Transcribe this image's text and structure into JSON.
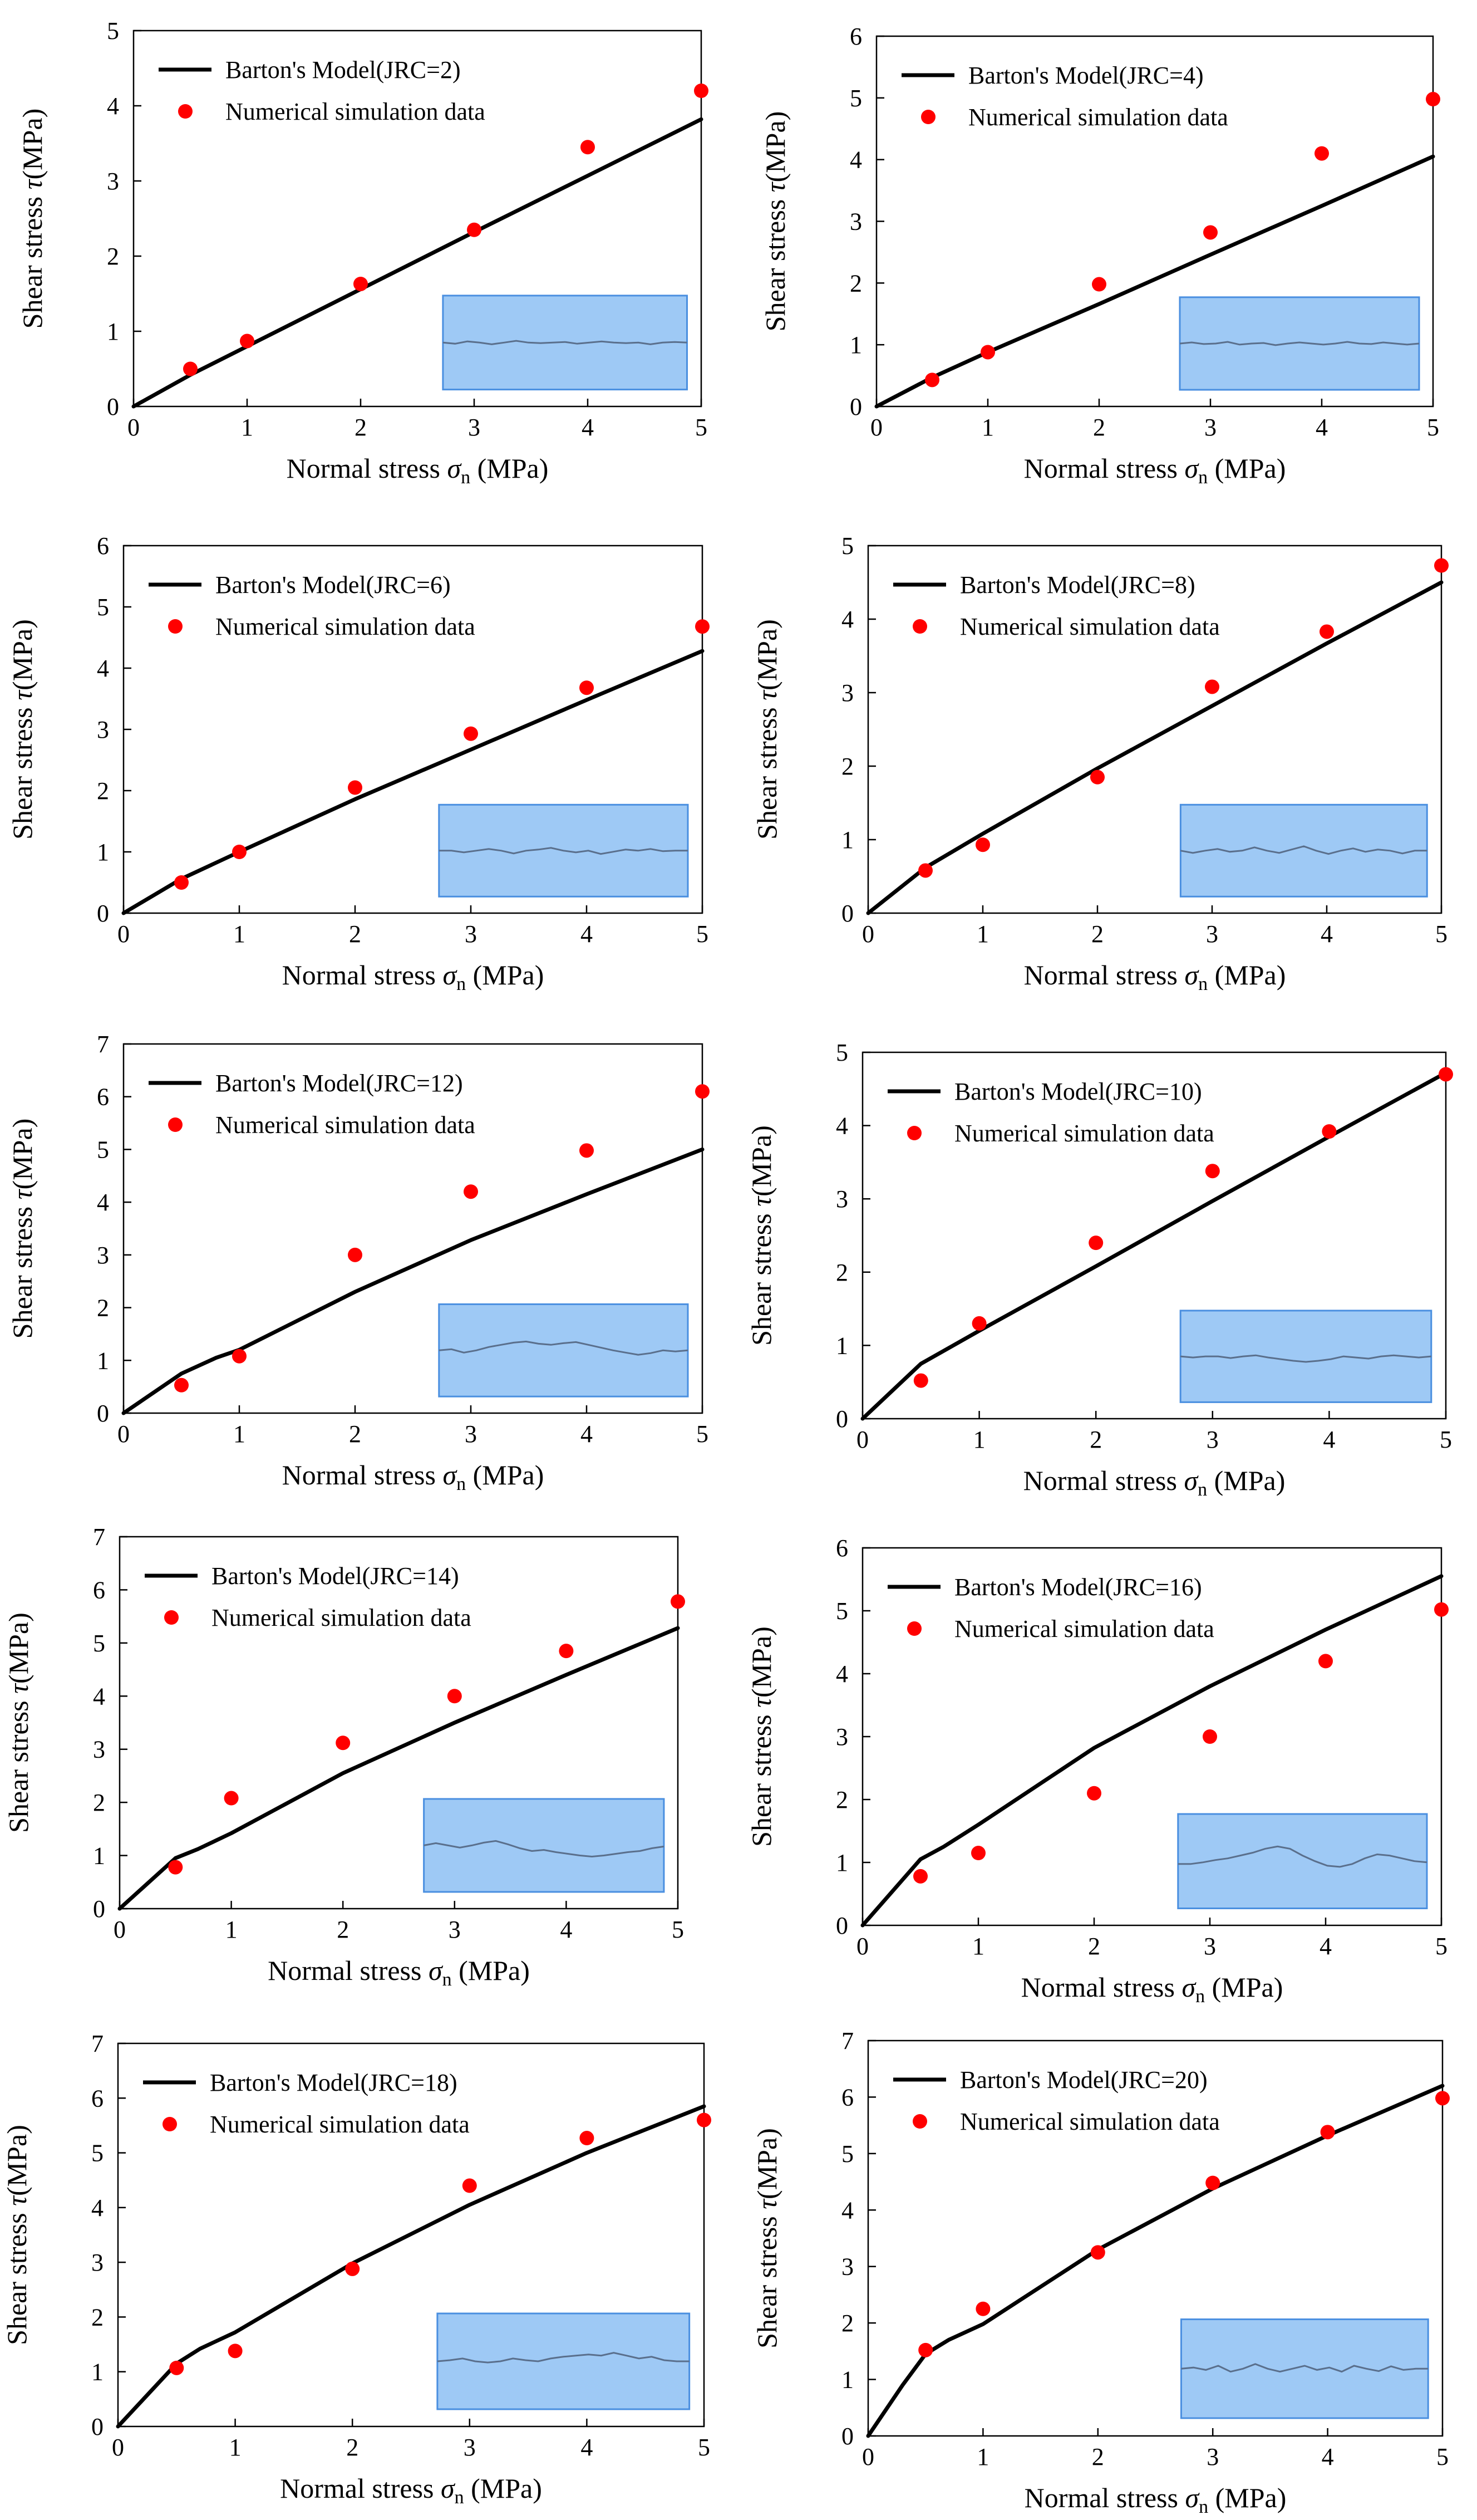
{
  "chart_data": [
    {
      "type": "line+scatter",
      "jrc": 2,
      "title": "",
      "xlabel": "Normal stress σn (MPa)",
      "ylabel": "Shear stress τ(MPa)",
      "xlim": [
        0,
        5
      ],
      "ylim": [
        0,
        5
      ],
      "xticks": [
        "0",
        "1",
        "2",
        "3",
        "4",
        "5"
      ],
      "yticks": [
        "0",
        "1",
        "2",
        "3",
        "4",
        "5"
      ],
      "legend": [
        "Barton's Model(JRC=2)",
        "Numerical simulation data"
      ],
      "model": {
        "name": "Barton's Model(JRC=2)",
        "x": [
          0,
          0.5,
          1,
          2,
          3,
          4,
          5
        ],
        "y": [
          0,
          0.42,
          0.8,
          1.56,
          2.32,
          3.07,
          3.82
        ]
      },
      "sim": {
        "name": "Numerical simulation data",
        "x": [
          0.5,
          1,
          2,
          3,
          4,
          5
        ],
        "y": [
          0.5,
          0.87,
          1.63,
          2.35,
          3.45,
          4.2
        ]
      },
      "inset_profile": [
        0.5,
        0.48,
        0.52,
        0.5,
        0.47,
        0.5,
        0.53,
        0.5,
        0.49,
        0.5,
        0.51,
        0.48,
        0.5,
        0.52,
        0.5,
        0.49,
        0.5,
        0.47,
        0.5,
        0.51,
        0.5
      ]
    },
    {
      "type": "line+scatter",
      "jrc": 4,
      "title": "",
      "xlabel": "Normal stress σn (MPa)",
      "ylabel": "Shear stress τ(MPa)",
      "xlim": [
        0,
        5
      ],
      "ylim": [
        0,
        6
      ],
      "xticks": [
        "0",
        "1",
        "2",
        "3",
        "4",
        "5"
      ],
      "yticks": [
        "0",
        "1",
        "2",
        "3",
        "4",
        "5",
        "6"
      ],
      "legend": [
        "Barton's Model(JRC=4)",
        "Numerical simulation data"
      ],
      "model": {
        "name": "Barton's Model(JRC=4)",
        "x": [
          0,
          0.5,
          1,
          2,
          3,
          4,
          5
        ],
        "y": [
          0,
          0.47,
          0.88,
          1.66,
          2.46,
          3.25,
          4.05
        ]
      },
      "sim": {
        "name": "Numerical simulation data",
        "x": [
          0.5,
          1,
          2,
          3,
          4,
          5
        ],
        "y": [
          0.43,
          0.88,
          1.98,
          2.82,
          4.1,
          4.98
        ]
      },
      "inset_profile": [
        0.5,
        0.52,
        0.49,
        0.5,
        0.53,
        0.48,
        0.5,
        0.51,
        0.47,
        0.5,
        0.52,
        0.5,
        0.48,
        0.5,
        0.53,
        0.5,
        0.49,
        0.52,
        0.5,
        0.48,
        0.5
      ]
    },
    {
      "type": "line+scatter",
      "jrc": 6,
      "title": "",
      "xlabel": "Normal stress σn (MPa)",
      "ylabel": "Shear stress τ(MPa)",
      "xlim": [
        0,
        5
      ],
      "ylim": [
        0,
        6
      ],
      "xticks": [
        "0",
        "1",
        "2",
        "3",
        "4",
        "5"
      ],
      "yticks": [
        "0",
        "1",
        "2",
        "3",
        "4",
        "5",
        "6"
      ],
      "legend": [
        "Barton's Model(JRC=6)",
        "Numerical simulation data"
      ],
      "model": {
        "name": "Barton's Model(JRC=6)",
        "x": [
          0,
          0.5,
          1,
          2,
          3,
          4,
          5
        ],
        "y": [
          0,
          0.56,
          1.0,
          1.86,
          2.67,
          3.48,
          4.28
        ]
      },
      "sim": {
        "name": "Numerical simulation data",
        "x": [
          0.5,
          1,
          2,
          3,
          4,
          5
        ],
        "y": [
          0.5,
          1.0,
          2.05,
          2.93,
          3.68,
          4.68
        ]
      },
      "inset_profile": [
        0.5,
        0.5,
        0.47,
        0.5,
        0.53,
        0.5,
        0.45,
        0.5,
        0.52,
        0.55,
        0.5,
        0.47,
        0.5,
        0.44,
        0.48,
        0.52,
        0.5,
        0.53,
        0.49,
        0.5,
        0.5
      ]
    },
    {
      "type": "line+scatter",
      "jrc": 8,
      "title": "",
      "xlabel": "Normal stress σn (MPa)",
      "ylabel": "Shear stress τ(MPa)",
      "xlim": [
        0,
        5
      ],
      "ylim": [
        0,
        5
      ],
      "xticks": [
        "0",
        "1",
        "2",
        "3",
        "4",
        "5"
      ],
      "yticks": [
        "0",
        "1",
        "2",
        "3",
        "4",
        "5"
      ],
      "legend": [
        "Barton's Model(JRC=8)",
        "Numerical simulation data"
      ],
      "model": {
        "name": "Barton's Model(JRC=8)",
        "x": [
          0,
          0.5,
          1,
          2,
          3,
          4,
          5
        ],
        "y": [
          0,
          0.62,
          1.08,
          1.97,
          2.82,
          3.67,
          4.5
        ]
      },
      "sim": {
        "name": "Numerical simulation data",
        "x": [
          0.5,
          1,
          2,
          3,
          4,
          5
        ],
        "y": [
          0.58,
          0.93,
          1.85,
          3.08,
          3.83,
          4.73
        ]
      },
      "inset_profile": [
        0.5,
        0.46,
        0.5,
        0.53,
        0.48,
        0.5,
        0.56,
        0.5,
        0.46,
        0.52,
        0.58,
        0.5,
        0.44,
        0.5,
        0.54,
        0.48,
        0.52,
        0.5,
        0.45,
        0.5,
        0.5
      ]
    },
    {
      "type": "line+scatter",
      "jrc": 12,
      "title": "",
      "xlabel": "Normal stress σn (MPa)",
      "ylabel": "Shear stress τ(MPa)",
      "xlim": [
        0,
        5
      ],
      "ylim": [
        0,
        7
      ],
      "xticks": [
        "0",
        "1",
        "2",
        "3",
        "4",
        "5"
      ],
      "yticks": [
        "0",
        "1",
        "2",
        "3",
        "4",
        "5",
        "6",
        "7"
      ],
      "legend": [
        "Barton's Model(JRC=12)",
        "Numerical simulation data"
      ],
      "model": {
        "name": "Barton's Model(JRC=12)",
        "x": [
          0,
          0.5,
          0.8,
          1,
          2,
          3,
          4,
          5
        ],
        "y": [
          0,
          0.75,
          1.05,
          1.2,
          2.3,
          3.28,
          4.15,
          5.0
        ]
      },
      "sim": {
        "name": "Numerical simulation data",
        "x": [
          0.5,
          1,
          2,
          3,
          4,
          5
        ],
        "y": [
          0.53,
          1.08,
          3.0,
          4.2,
          4.98,
          6.1
        ]
      },
      "inset_profile": [
        0.5,
        0.52,
        0.46,
        0.5,
        0.56,
        0.6,
        0.64,
        0.66,
        0.62,
        0.6,
        0.63,
        0.65,
        0.6,
        0.55,
        0.5,
        0.46,
        0.42,
        0.45,
        0.5,
        0.48,
        0.5
      ]
    },
    {
      "type": "line+scatter",
      "jrc": 10,
      "title": "",
      "xlabel": "Normal stress σn (MPa)",
      "ylabel": "Shear stress τ(MPa)",
      "xlim": [
        0,
        5
      ],
      "ylim": [
        0,
        5
      ],
      "xticks": [
        "0",
        "1",
        "2",
        "3",
        "4",
        "5"
      ],
      "yticks": [
        "0",
        "1",
        "2",
        "3",
        "4",
        "5"
      ],
      "legend": [
        "Barton's Model(JRC=10)",
        "Numerical simulation data"
      ],
      "model": {
        "name": "Barton's Model(JRC=10)",
        "x": [
          0,
          0.5,
          1,
          2,
          3,
          4,
          5
        ],
        "y": [
          0,
          0.75,
          1.2,
          2.08,
          2.97,
          3.85,
          4.72
        ]
      },
      "sim": {
        "name": "Numerical simulation data",
        "x": [
          0.5,
          1,
          2,
          3,
          4,
          5
        ],
        "y": [
          0.52,
          1.3,
          2.4,
          3.38,
          3.92,
          4.7
        ]
      },
      "inset_profile": [
        0.5,
        0.48,
        0.5,
        0.5,
        0.47,
        0.5,
        0.52,
        0.48,
        0.45,
        0.42,
        0.4,
        0.42,
        0.45,
        0.5,
        0.48,
        0.46,
        0.5,
        0.52,
        0.5,
        0.48,
        0.5
      ]
    },
    {
      "type": "line+scatter",
      "jrc": 14,
      "title": "",
      "xlabel": "Normal stress σn (MPa)",
      "ylabel": "Shear stress τ(MPa)",
      "xlim": [
        0,
        5
      ],
      "ylim": [
        0,
        7
      ],
      "xticks": [
        "0",
        "1",
        "2",
        "3",
        "4",
        "5"
      ],
      "yticks": [
        "0",
        "1",
        "2",
        "3",
        "4",
        "5",
        "6",
        "7"
      ],
      "legend": [
        "Barton's Model(JRC=14)",
        "Numerical simulation data"
      ],
      "model": {
        "name": "Barton's Model(JRC=14)",
        "x": [
          0,
          0.5,
          0.7,
          1,
          2,
          3,
          4,
          5
        ],
        "y": [
          0,
          0.95,
          1.12,
          1.42,
          2.55,
          3.5,
          4.4,
          5.28
        ]
      },
      "sim": {
        "name": "Numerical simulation data",
        "x": [
          0.5,
          1,
          2,
          3,
          4,
          5
        ],
        "y": [
          0.78,
          2.08,
          3.12,
          4.0,
          4.85,
          5.78
        ]
      },
      "inset_profile": [
        0.5,
        0.54,
        0.5,
        0.46,
        0.5,
        0.55,
        0.58,
        0.52,
        0.45,
        0.4,
        0.42,
        0.38,
        0.35,
        0.32,
        0.3,
        0.32,
        0.35,
        0.38,
        0.4,
        0.45,
        0.48
      ]
    },
    {
      "type": "line+scatter",
      "jrc": 16,
      "title": "",
      "xlabel": "Normal stress σn (MPa)",
      "ylabel": "Shear stress τ(MPa)",
      "xlim": [
        0,
        5
      ],
      "ylim": [
        0,
        6
      ],
      "xticks": [
        "0",
        "1",
        "2",
        "3",
        "4",
        "5"
      ],
      "yticks": [
        "0",
        "1",
        "2",
        "3",
        "4",
        "5",
        "6"
      ],
      "legend": [
        "Barton's Model(JRC=16)",
        "Numerical simulation data"
      ],
      "model": {
        "name": "Barton's Model(JRC=16)",
        "x": [
          0,
          0.5,
          0.7,
          1,
          2,
          3,
          4,
          5
        ],
        "y": [
          0,
          1.05,
          1.25,
          1.6,
          2.82,
          3.8,
          4.7,
          5.55
        ]
      },
      "sim": {
        "name": "Numerical simulation data",
        "x": [
          0.5,
          1,
          2,
          3,
          4,
          5
        ],
        "y": [
          0.78,
          1.15,
          2.1,
          3.0,
          4.2,
          5.02
        ]
      },
      "inset_profile": [
        0.45,
        0.45,
        0.48,
        0.52,
        0.55,
        0.6,
        0.65,
        0.72,
        0.76,
        0.72,
        0.6,
        0.5,
        0.42,
        0.4,
        0.45,
        0.55,
        0.62,
        0.6,
        0.55,
        0.5,
        0.48
      ]
    },
    {
      "type": "line+scatter",
      "jrc": 18,
      "title": "",
      "xlabel": "Normal stress σn (MPa)",
      "ylabel": "Shear stress τ(MPa)",
      "xlim": [
        0,
        5
      ],
      "ylim": [
        0,
        7
      ],
      "xticks": [
        "0",
        "1",
        "2",
        "3",
        "4",
        "5"
      ],
      "yticks": [
        "0",
        "1",
        "2",
        "3",
        "4",
        "5",
        "6",
        "7"
      ],
      "legend": [
        "Barton's Model(JRC=18)",
        "Numerical simulation data"
      ],
      "model": {
        "name": "Barton's Model(JRC=18)",
        "x": [
          0,
          0.5,
          0.7,
          1,
          2,
          3,
          4,
          5
        ],
        "y": [
          0,
          1.15,
          1.42,
          1.72,
          2.98,
          4.05,
          5.0,
          5.85
        ]
      },
      "sim": {
        "name": "Numerical simulation data",
        "x": [
          0.5,
          1,
          2,
          3,
          4,
          5
        ],
        "y": [
          1.07,
          1.38,
          2.88,
          4.4,
          5.27,
          5.6
        ]
      },
      "inset_profile": [
        0.5,
        0.52,
        0.55,
        0.5,
        0.48,
        0.5,
        0.55,
        0.52,
        0.5,
        0.55,
        0.58,
        0.6,
        0.62,
        0.6,
        0.65,
        0.6,
        0.55,
        0.58,
        0.52,
        0.5,
        0.5
      ]
    },
    {
      "type": "line+scatter",
      "jrc": 20,
      "title": "",
      "xlabel": "Normal stress σn (MPa)",
      "ylabel": "Shear stress τ(MPa)",
      "xlim": [
        0,
        5
      ],
      "ylim": [
        0,
        7
      ],
      "xticks": [
        "0",
        "1",
        "2",
        "3",
        "4",
        "5"
      ],
      "yticks": [
        "0",
        "1",
        "2",
        "3",
        "4",
        "5",
        "6",
        "7"
      ],
      "legend": [
        "Barton's Model(JRC=20)",
        "Numerical simulation data"
      ],
      "model": {
        "name": "Barton's Model(JRC=20)",
        "x": [
          0,
          0.3,
          0.5,
          0.7,
          1,
          2,
          3,
          4,
          5
        ],
        "y": [
          0,
          0.9,
          1.45,
          1.7,
          1.98,
          3.3,
          4.38,
          5.32,
          6.2
        ]
      },
      "sim": {
        "name": "Numerical simulation data",
        "x": [
          0.5,
          1,
          2,
          3,
          4,
          5
        ],
        "y": [
          1.52,
          2.25,
          3.25,
          4.48,
          5.38,
          5.98
        ]
      },
      "inset_profile": [
        0.5,
        0.52,
        0.48,
        0.55,
        0.45,
        0.5,
        0.58,
        0.5,
        0.45,
        0.5,
        0.55,
        0.48,
        0.52,
        0.45,
        0.55,
        0.5,
        0.46,
        0.54,
        0.48,
        0.5,
        0.5
      ]
    }
  ],
  "colors": {
    "model_line": "#000000",
    "sim_marker": "#ff0000",
    "inset_fill": "#9ec9f5",
    "inset_border": "#4a8fe0",
    "inset_line": "#5a6f8c",
    "axis": "#000000"
  }
}
